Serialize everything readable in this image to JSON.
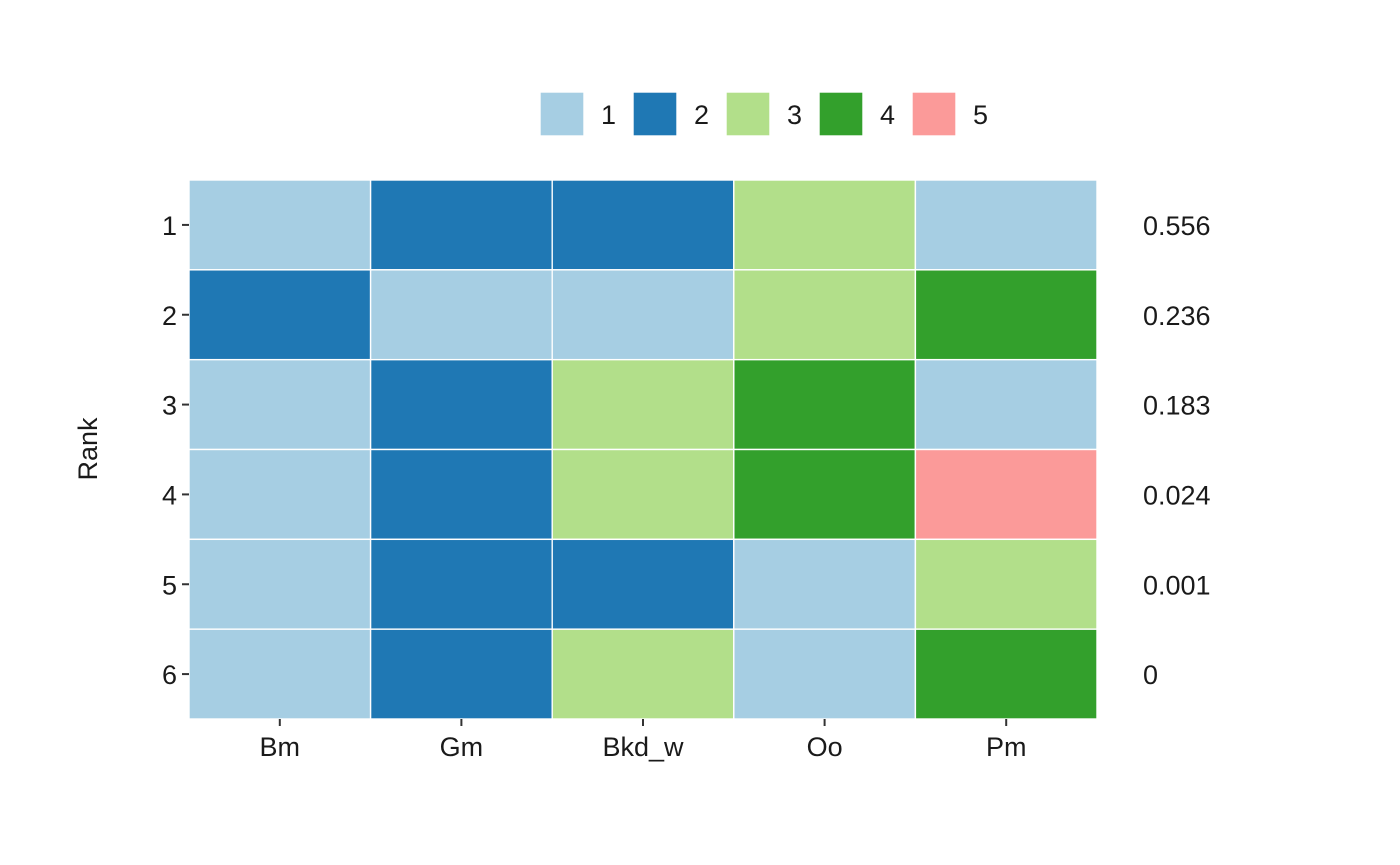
{
  "chart_data": {
    "type": "heatmap",
    "title": "",
    "xlabel": "",
    "ylabel": "Rank",
    "x_categories": [
      "Bm",
      "Gm",
      "Bkd_w",
      "Oo",
      "Pm"
    ],
    "y_categories": [
      "1",
      "2",
      "3",
      "4",
      "5",
      "6"
    ],
    "values": [
      [
        1,
        2,
        2,
        3,
        1
      ],
      [
        2,
        1,
        1,
        3,
        4
      ],
      [
        1,
        2,
        3,
        4,
        1
      ],
      [
        1,
        2,
        3,
        4,
        5
      ],
      [
        1,
        2,
        2,
        1,
        3
      ],
      [
        1,
        2,
        3,
        1,
        4
      ]
    ],
    "row_annotations": [
      "0.556",
      "0.236",
      "0.183",
      "0.024",
      "0.001",
      "0"
    ],
    "legend": {
      "position": "top",
      "entries": [
        "1",
        "2",
        "3",
        "4",
        "5"
      ],
      "colors": [
        "#a6cee3",
        "#1f78b4",
        "#b2df8a",
        "#33a02c",
        "#fb9a99"
      ]
    },
    "grid": false
  }
}
